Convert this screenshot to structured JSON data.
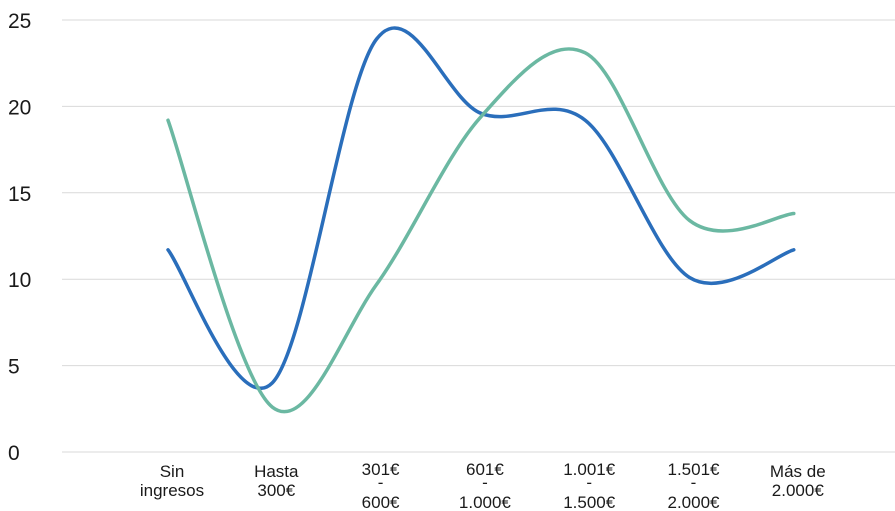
{
  "chart_data": {
    "type": "line",
    "title": "",
    "xlabel": "",
    "ylabel": "",
    "ylim": [
      0,
      25
    ],
    "yticks": [
      "0",
      "5",
      "10",
      "15",
      "20",
      "25"
    ],
    "grid": true,
    "legend": "none",
    "categories": [
      [
        "Sin",
        "ingresos"
      ],
      [
        "Hasta",
        "300€"
      ],
      [
        "301€",
        "-",
        "600€"
      ],
      [
        "601€",
        "-",
        "1.000€"
      ],
      [
        "1.001€",
        "-",
        "1.500€"
      ],
      [
        "1.501€",
        "-",
        "2.000€"
      ],
      [
        "Más de",
        "2.000€"
      ]
    ],
    "series": [
      {
        "color": "#2a6ebb",
        "values": [
          11.7,
          4.0,
          23.9,
          19.6,
          19.2,
          10.1,
          11.7
        ]
      },
      {
        "color": "#6bb8a2",
        "values": [
          19.2,
          2.6,
          9.7,
          19.4,
          23.1,
          13.4,
          13.8
        ]
      }
    ]
  }
}
